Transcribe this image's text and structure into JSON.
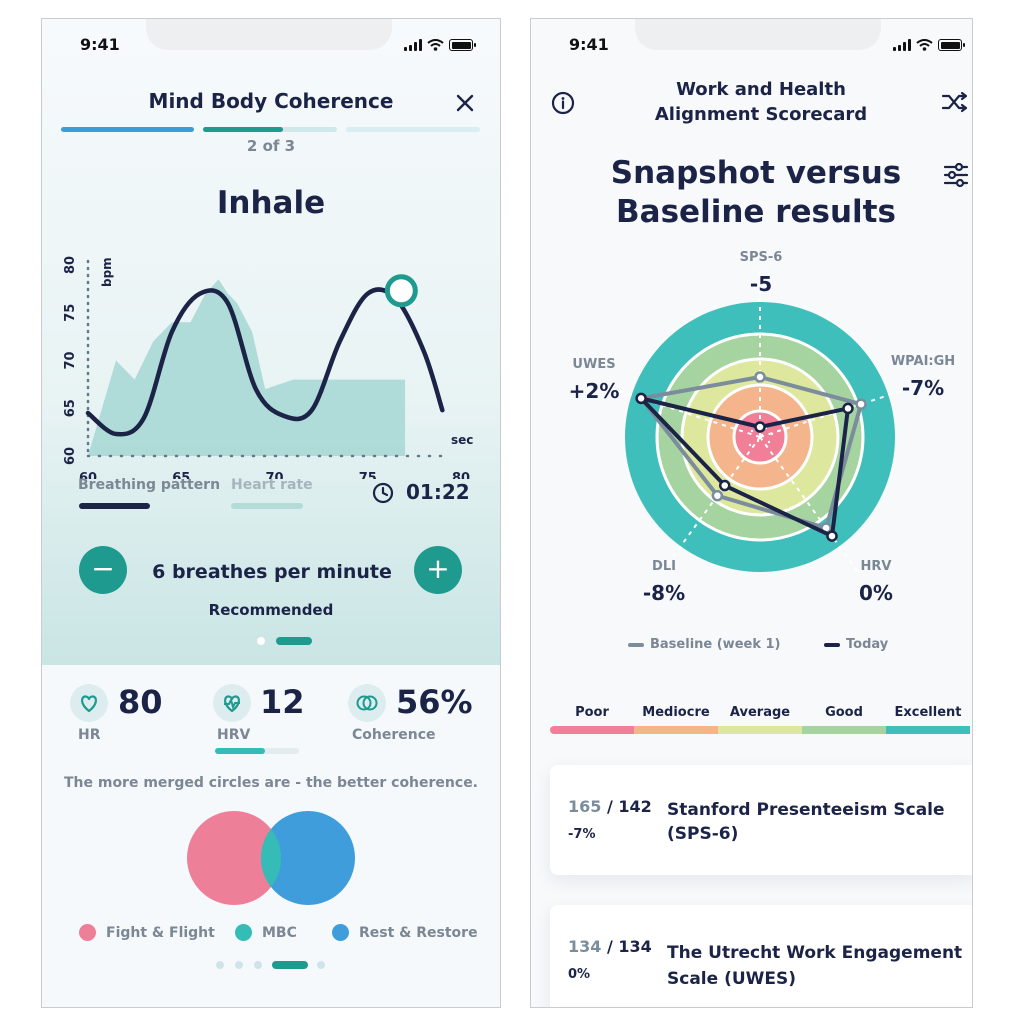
{
  "left": {
    "status_time": "9:41",
    "title": "Mind Body Coherence",
    "step": "2 of 3",
    "phase": "Inhale",
    "legend": {
      "breathing": "Breathing pattern",
      "heart": "Heart rate"
    },
    "timer": "01:22",
    "rate": "6 breathes per minute",
    "recommended": "Recommended",
    "stats": [
      {
        "value": "80",
        "label": "HR",
        "icon": "heart-icon"
      },
      {
        "value": "12",
        "label": "HRV",
        "icon": "heart-pulse-icon",
        "progress": 0.6
      },
      {
        "value": "56%",
        "label": "Coherence",
        "icon": "rings-icon"
      }
    ],
    "merge_text": "The more merged circles are - the better coherence.",
    "venn_legend": [
      "Fight & Flight",
      "MBC",
      "Rest & Restore"
    ],
    "colors": {
      "fight": "#ee7f99",
      "mbc": "#36bcb6",
      "rest": "#3f9ddc",
      "accent": "#1e9a8f"
    }
  },
  "chart_data": {
    "type": "line",
    "xlabel": "sec",
    "ylabel": "bpm",
    "xlim": [
      60,
      80
    ],
    "ylim": [
      60,
      80
    ],
    "x_ticks": [
      "60",
      "65",
      "70",
      "75",
      "80"
    ],
    "y_ticks": [
      "60",
      "65",
      "70",
      "75",
      "80"
    ],
    "series": [
      {
        "name": "Breathing pattern",
        "x": [
          60,
          61.5,
          63,
          64.5,
          66,
          67.5,
          69,
          70.5,
          72,
          73.5,
          75,
          76.5,
          78,
          79
        ],
        "values": [
          64.5,
          62.3,
          64,
          73,
          77,
          76,
          67,
          64.2,
          64.8,
          72,
          77,
          76.5,
          71,
          64.8
        ]
      },
      {
        "name": "Heart rate",
        "x": [
          60,
          61.5,
          62.5,
          63.5,
          64.5,
          65.5,
          66.3,
          67,
          67.5,
          68,
          68.8,
          69.5,
          71,
          72.5,
          74,
          75.5,
          77
        ],
        "values": [
          60,
          70,
          68,
          72,
          74,
          74,
          77,
          78.5,
          77,
          76,
          73,
          67,
          68,
          68,
          68,
          68,
          68
        ]
      }
    ],
    "marker_x": 76.8,
    "marker_y": 77.3
  },
  "right": {
    "status_time": "9:41",
    "header": [
      "Work and Health",
      "Alignment Scorecard"
    ],
    "headline": [
      "Snapshot versus",
      "Baseline results"
    ],
    "axes": [
      {
        "label": "SPS-6",
        "value": "-5",
        "today": 0.0,
        "baseline": 0.4
      },
      {
        "label": "WPAI:GH",
        "value": "-7%",
        "today": 0.66,
        "baseline": 0.77
      },
      {
        "label": "HRV",
        "value": "0%",
        "today": 0.9,
        "baseline": 0.82
      },
      {
        "label": "DLI",
        "value": "-8%",
        "today": 0.4,
        "baseline": 0.5
      },
      {
        "label": "UWES",
        "value": "+2%",
        "today": 0.92,
        "baseline": 0.92
      }
    ],
    "legend": {
      "baseline": "Baseline (week 1)",
      "today": "Today"
    },
    "scale": [
      {
        "label": "Poor",
        "color": "#f17f97"
      },
      {
        "label": "Mediocre",
        "color": "#f5b58c"
      },
      {
        "label": "Average",
        "color": "#dde79e"
      },
      {
        "label": "Good",
        "color": "#a6d4a0"
      },
      {
        "label": "Excellent",
        "color": "#3fbfbc"
      }
    ],
    "cards": [
      {
        "score": "165",
        "total": "/ 142",
        "change": "-7%",
        "title": [
          "Stanford Presenteeism Scale",
          "(SPS-6)"
        ]
      },
      {
        "score": "134",
        "total": "/ 134",
        "change": "0%",
        "title": [
          "The Utrecht Work Engagement",
          "Scale (UWES)"
        ]
      }
    ]
  }
}
